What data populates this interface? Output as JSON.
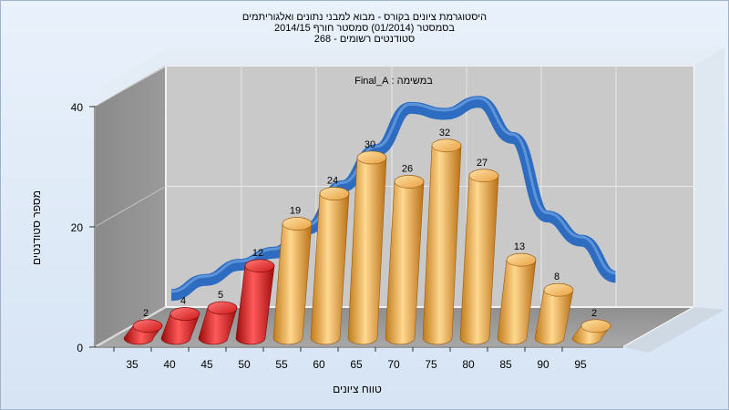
{
  "chart_data": {
    "type": "bar",
    "title_lines": [
      "היסטוגרמת ציונים בקורס - מבוא למבני נתונים ואלגוריתמים",
      "בסמסטר  (01/2014)  סמסטר חורף 2014/15",
      "סטודנטים רשומים - 268"
    ],
    "annotation": "במשימה : Final_A",
    "xlabel": "טווח ציונים",
    "ylabel": "מספר סטודנטים",
    "categories": [
      "35",
      "40",
      "45",
      "50",
      "55",
      "60",
      "65",
      "70",
      "75",
      "80",
      "85",
      "90",
      "95"
    ],
    "values": [
      2,
      4,
      5,
      12,
      19,
      24,
      30,
      26,
      32,
      27,
      13,
      8,
      2
    ],
    "bar_colors": [
      "#d81818",
      "#d81818",
      "#d81818",
      "#d81818",
      "#e8a040",
      "#e8a040",
      "#e8a040",
      "#e8a040",
      "#e8a040",
      "#e8a040",
      "#e8a040",
      "#e8a040",
      "#e8a040"
    ],
    "ylim": [
      0,
      40
    ],
    "yticks": [
      0,
      20,
      40
    ],
    "trend_values": [
      2,
      4.5,
      7,
      9,
      13,
      20,
      26,
      33,
      32,
      34,
      28,
      15,
      11,
      5
    ],
    "trend_color": "#2d6cc0",
    "grid": true,
    "legend": "none"
  }
}
